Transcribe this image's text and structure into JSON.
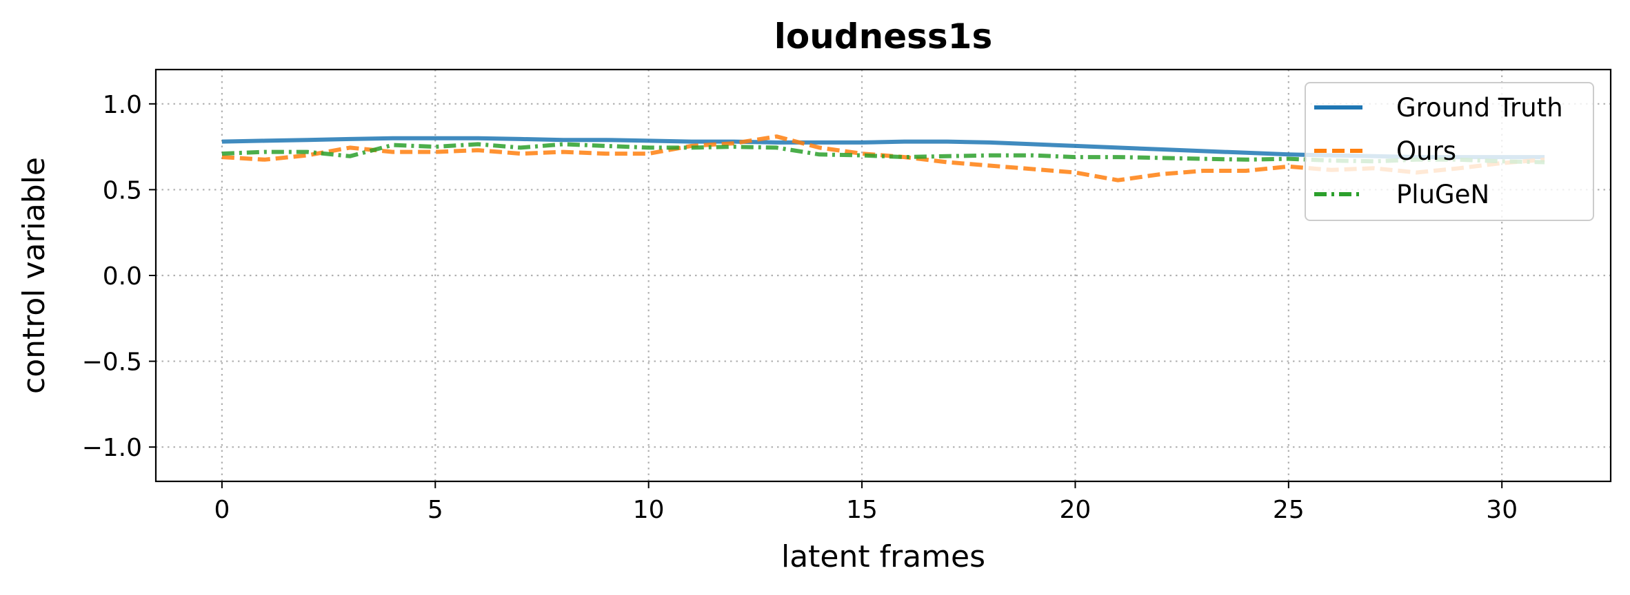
{
  "chart_data": {
    "type": "line",
    "title": "loudness1s",
    "xlabel": "latent frames",
    "ylabel": "control variable",
    "xlim": [
      -1.55,
      32.55
    ],
    "ylim": [
      -1.2,
      1.2
    ],
    "x_ticks": [
      0,
      5,
      10,
      15,
      20,
      25,
      30
    ],
    "x_tick_labels": [
      "0",
      "5",
      "10",
      "15",
      "20",
      "25",
      "30"
    ],
    "y_ticks": [
      -1.0,
      -0.5,
      0.0,
      0.5,
      1.0
    ],
    "y_tick_labels": [
      "−1.0",
      "−0.5",
      "0.0",
      "0.5",
      "1.0"
    ],
    "grid": true,
    "legend_position": "upper right",
    "x": [
      0,
      1,
      2,
      3,
      4,
      5,
      6,
      7,
      8,
      9,
      10,
      11,
      12,
      13,
      14,
      15,
      16,
      17,
      18,
      19,
      20,
      21,
      22,
      23,
      24,
      25,
      26,
      27,
      28,
      29,
      30,
      31
    ],
    "series": [
      {
        "name": "Ground Truth",
        "color": "#1f77b4",
        "style": "solid",
        "values": [
          0.78,
          0.785,
          0.79,
          0.795,
          0.8,
          0.8,
          0.8,
          0.795,
          0.79,
          0.79,
          0.785,
          0.78,
          0.78,
          0.775,
          0.775,
          0.775,
          0.78,
          0.78,
          0.775,
          0.765,
          0.755,
          0.745,
          0.735,
          0.725,
          0.715,
          0.705,
          0.7,
          0.695,
          0.69,
          0.69,
          0.69,
          0.69
        ]
      },
      {
        "name": "Ours",
        "color": "#ff7f0e",
        "style": "dashed",
        "values": [
          0.69,
          0.675,
          0.7,
          0.745,
          0.72,
          0.72,
          0.73,
          0.71,
          0.72,
          0.71,
          0.71,
          0.755,
          0.77,
          0.81,
          0.745,
          0.71,
          0.69,
          0.66,
          0.64,
          0.62,
          0.6,
          0.555,
          0.59,
          0.61,
          0.61,
          0.635,
          0.615,
          0.625,
          0.6,
          0.625,
          0.655,
          0.675
        ]
      },
      {
        "name": "PluGeN",
        "color": "#2ca02c",
        "style": "dashdot",
        "values": [
          0.71,
          0.72,
          0.72,
          0.695,
          0.76,
          0.75,
          0.765,
          0.745,
          0.765,
          0.755,
          0.745,
          0.745,
          0.75,
          0.745,
          0.705,
          0.7,
          0.69,
          0.695,
          0.7,
          0.7,
          0.69,
          0.69,
          0.685,
          0.68,
          0.675,
          0.68,
          0.67,
          0.665,
          0.675,
          0.675,
          0.665,
          0.66
        ]
      }
    ]
  }
}
